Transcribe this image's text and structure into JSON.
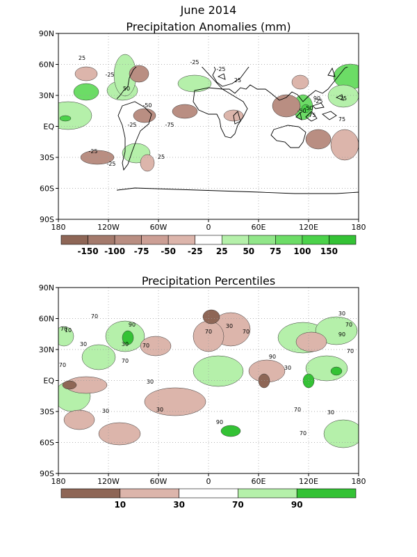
{
  "figure": {
    "title": "June 2014",
    "panel1_title": "Precipitation Anomalies (mm)",
    "panel2_title": "Precipitation Percentiles"
  },
  "axes": {
    "lat_ticks": [
      "90N",
      "60N",
      "30N",
      "EQ",
      "30S",
      "60S",
      "90S"
    ],
    "lon_ticks": [
      "180",
      "120W",
      "60W",
      "0",
      "60E",
      "120E",
      "180"
    ]
  },
  "colorbar1": {
    "colors": [
      "#8e6656",
      "#a47a6c",
      "#b98e82",
      "#cc9f95",
      "#dcb5ab",
      "#ffffff",
      "#b5f0aa",
      "#91e689",
      "#6cdc66",
      "#4bd24a",
      "#34c235"
    ],
    "labels": [
      "-150",
      "-100",
      "-75",
      "-50",
      "-25",
      "25",
      "50",
      "75",
      "100",
      "150"
    ]
  },
  "colorbar2": {
    "colors": [
      "#8e6656",
      "#dcb5ab",
      "#ffffff",
      "#b5f0aa",
      "#34c235"
    ],
    "labels": [
      "10",
      "30",
      "70",
      "90"
    ]
  },
  "contour_labels_1": [
    "25",
    "-25",
    "50",
    "-50",
    "-75",
    "75",
    "90",
    "-25",
    "-25",
    "25",
    "-50",
    "-75",
    "-25",
    "-25",
    "-25",
    "25",
    "-25",
    "-50",
    "75"
  ],
  "contour_labels_2": [
    "70",
    "30",
    "90",
    "70",
    "10",
    "30",
    "70",
    "30",
    "70",
    "30",
    "70",
    "90",
    "70",
    "30",
    "30",
    "70",
    "30",
    "90",
    "70",
    "30",
    "70",
    "70",
    "30",
    "90",
    "70"
  ]
}
